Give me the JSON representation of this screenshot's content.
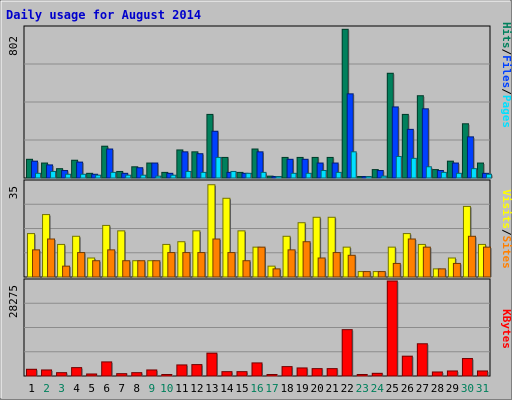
{
  "title": "Daily usage for August 2014",
  "colors": {
    "background": "#c0c0c0",
    "plot_bg": "#c0c0c0",
    "title": "#0000cc",
    "grid": "#8c8c8c",
    "hits": "#00805c",
    "files": "#0040ff",
    "pages": "#00e0ff",
    "visits": "#ffff00",
    "sites": "#ff8000",
    "kbytes": "#ff0000",
    "weekday_label": "#000000",
    "weekend_label": "#00805c"
  },
  "weekend_days": [
    2,
    3,
    9,
    10,
    16,
    17,
    23,
    24,
    30,
    31
  ],
  "chart_data": [
    {
      "type": "bar",
      "panel": "hits-files-pages",
      "max_label": "802",
      "ylim": [
        0,
        802
      ],
      "legend": [
        {
          "text": "Hits",
          "color": "#00805c"
        },
        {
          "text": "/",
          "color": "#000000"
        },
        {
          "text": "Files",
          "color": "#0040ff"
        },
        {
          "text": "/",
          "color": "#000000"
        },
        {
          "text": "Pages",
          "color": "#00e0ff"
        }
      ],
      "categories": [
        "1",
        "2",
        "3",
        "4",
        "5",
        "6",
        "7",
        "8",
        "9",
        "10",
        "11",
        "12",
        "13",
        "14",
        "15",
        "16",
        "17",
        "18",
        "19",
        "20",
        "21",
        "22",
        "23",
        "24",
        "25",
        "26",
        "27",
        "28",
        "29",
        "30",
        "31"
      ],
      "series": [
        {
          "name": "Hits",
          "values": [
            100,
            80,
            50,
            95,
            25,
            170,
            35,
            60,
            80,
            30,
            150,
            140,
            340,
            110,
            30,
            155,
            10,
            110,
            110,
            110,
            110,
            795,
            5,
            45,
            560,
            340,
            440,
            45,
            90,
            290,
            80
          ]
        },
        {
          "name": "Files",
          "values": [
            90,
            70,
            40,
            85,
            20,
            155,
            25,
            55,
            80,
            25,
            140,
            130,
            250,
            30,
            25,
            140,
            8,
            100,
            100,
            80,
            80,
            450,
            5,
            40,
            380,
            260,
            370,
            40,
            80,
            220,
            25
          ]
        },
        {
          "name": "Pages",
          "values": [
            25,
            35,
            20,
            20,
            15,
            30,
            15,
            15,
            10,
            15,
            35,
            30,
            110,
            35,
            25,
            30,
            5,
            25,
            25,
            40,
            30,
            140,
            3,
            10,
            115,
            105,
            60,
            30,
            25,
            50,
            20
          ]
        }
      ]
    },
    {
      "type": "bar",
      "panel": "visits-sites",
      "max_label": "35",
      "ylim": [
        0,
        35
      ],
      "legend": [
        {
          "text": "Visits",
          "color": "#ffff00"
        },
        {
          "text": "/",
          "color": "#000000"
        },
        {
          "text": "Sites",
          "color": "#ff8000"
        }
      ],
      "categories": [
        "1",
        "2",
        "3",
        "4",
        "5",
        "6",
        "7",
        "8",
        "9",
        "10",
        "11",
        "12",
        "13",
        "14",
        "15",
        "16",
        "17",
        "18",
        "19",
        "20",
        "21",
        "22",
        "23",
        "24",
        "25",
        "26",
        "27",
        "28",
        "29",
        "30",
        "31"
      ],
      "series": [
        {
          "name": "Visits",
          "values": [
            16,
            23,
            12,
            15,
            7,
            19,
            17,
            6,
            6,
            12,
            13,
            17,
            34,
            29,
            17,
            11,
            4,
            15,
            20,
            22,
            22,
            11,
            2,
            2,
            11,
            16,
            12,
            3,
            7,
            26,
            12
          ]
        },
        {
          "name": "Sites",
          "values": [
            10,
            14,
            4,
            9,
            6,
            10,
            6,
            6,
            6,
            9,
            9,
            9,
            14,
            9,
            6,
            11,
            3,
            10,
            13,
            7,
            9,
            8,
            2,
            2,
            5,
            14,
            11,
            3,
            5,
            15,
            11
          ]
        }
      ]
    },
    {
      "type": "bar",
      "panel": "kbytes",
      "max_label": "28275",
      "ylim": [
        0,
        28275
      ],
      "legend": [
        {
          "text": "KBytes",
          "color": "#ff0000"
        }
      ],
      "categories": [
        "1",
        "2",
        "3",
        "4",
        "5",
        "6",
        "7",
        "8",
        "9",
        "10",
        "11",
        "12",
        "13",
        "14",
        "15",
        "16",
        "17",
        "18",
        "19",
        "20",
        "21",
        "22",
        "23",
        "24",
        "25",
        "26",
        "27",
        "28",
        "29",
        "30",
        "31"
      ],
      "series": [
        {
          "name": "KBytes",
          "values": [
            2000,
            1800,
            1000,
            2500,
            600,
            4200,
            700,
            1000,
            1800,
            400,
            3300,
            3400,
            6800,
            1300,
            1300,
            3900,
            400,
            2800,
            2400,
            2200,
            2200,
            13800,
            0,
            800,
            28275,
            5900,
            9600,
            1200,
            1500,
            5200,
            1500
          ]
        }
      ]
    }
  ]
}
